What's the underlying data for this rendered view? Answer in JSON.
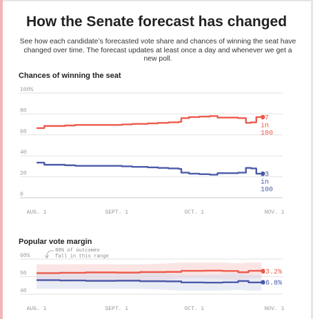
{
  "title": "How the Senate forecast has changed",
  "subtitle": "See how each candidate’s forecasted vote share and chances of winning the seat have changed over time. The forecast updates at least once a day and whenever we get a new poll.",
  "colors": {
    "red": "#ee5a4a",
    "blue": "#4a5aa8",
    "red_band": "#f7d0cd",
    "blue_band": "#d9dcec",
    "grid": "#e2e2e2"
  },
  "chart_data": [
    {
      "type": "line",
      "title": "Chances of winning the seat",
      "ylim": [
        0,
        100
      ],
      "yticks": [
        0,
        20,
        40,
        60,
        80,
        100
      ],
      "ytick_labels": [
        "0",
        "20",
        "40",
        "60",
        "80",
        "100%"
      ],
      "xlim": [
        "2018-08-01",
        "2018-11-01"
      ],
      "xticks": [
        "AUG. 1",
        "SEPT. 1",
        "OCT. 1",
        "NOV. 1"
      ],
      "x": [
        "2018-08-01",
        "2018-08-04",
        "2018-08-08",
        "2018-08-12",
        "2018-08-16",
        "2018-08-20",
        "2018-08-24",
        "2018-08-28",
        "2018-09-01",
        "2018-09-03",
        "2018-09-07",
        "2018-09-11",
        "2018-09-13",
        "2018-09-17",
        "2018-09-21",
        "2018-09-25",
        "2018-09-26",
        "2018-09-29",
        "2018-10-03",
        "2018-10-07",
        "2018-10-10",
        "2018-10-14",
        "2018-10-18",
        "2018-10-21",
        "2018-10-23",
        "2018-10-25",
        "2018-10-27"
      ],
      "series": [
        {
          "color": "red",
          "values": [
            66.5,
            68.5,
            68.5,
            69,
            69.5,
            69.5,
            69.5,
            69.5,
            69.5,
            70,
            70.5,
            70.5,
            71,
            71.5,
            72,
            72.5,
            76,
            77,
            77.5,
            78,
            76.5,
            76.5,
            76,
            71.5,
            72,
            77,
            77
          ]
        },
        {
          "color": "blue",
          "values": [
            33.5,
            31.5,
            31.5,
            31,
            30.5,
            30.5,
            30.5,
            30.5,
            30.5,
            30,
            29.5,
            29.5,
            29,
            28.5,
            28,
            27.5,
            24,
            23,
            22.5,
            22,
            23.5,
            23.5,
            24,
            28.5,
            28,
            23,
            23
          ]
        }
      ],
      "end_labels": [
        {
          "color": "red",
          "value": 77,
          "lines": [
            "77",
            "in",
            "100"
          ]
        },
        {
          "color": "blue",
          "value": 23,
          "lines": [
            "23",
            "in",
            "100"
          ]
        }
      ]
    },
    {
      "type": "line",
      "title": "Popular vote margin",
      "ylim": [
        40,
        60
      ],
      "yticks": [
        40,
        50,
        60
      ],
      "ytick_labels": [
        "40",
        "50",
        "60%"
      ],
      "xlim": [
        "2018-08-01",
        "2018-11-01"
      ],
      "xticks": [
        "AUG. 1",
        "SEPT. 1",
        "OCT. 1",
        "NOV. 1"
      ],
      "annotation": [
        "80% of outcomes",
        "fall in this range"
      ],
      "x": [
        "2018-08-01",
        "2018-08-10",
        "2018-08-20",
        "2018-09-01",
        "2018-09-10",
        "2018-09-20",
        "2018-09-26",
        "2018-10-05",
        "2018-10-12",
        "2018-10-18",
        "2018-10-22",
        "2018-10-27"
      ],
      "series": [
        {
          "color": "red",
          "values": [
            52,
            52.2,
            52.4,
            52.3,
            52.6,
            52.7,
            53.3,
            53.4,
            53.2,
            52.5,
            53.3,
            53.2
          ],
          "band": [
            [
              57,
              47
            ],
            [
              57,
              47
            ],
            [
              57,
              47.4
            ],
            [
              57,
              47.4
            ],
            [
              57,
              47.8
            ],
            [
              57.5,
              48
            ],
            [
              58,
              49
            ],
            [
              58,
              49
            ],
            [
              58,
              48.6
            ],
            [
              57.5,
              48
            ],
            [
              58,
              49
            ],
            [
              58,
              49
            ]
          ]
        },
        {
          "color": "blue",
          "values": [
            48,
            47.8,
            47.6,
            47.7,
            47.4,
            47.3,
            46.7,
            46.6,
            46.8,
            47.5,
            46.7,
            46.8
          ],
          "band": [
            [
              53,
              43
            ],
            [
              53,
              43
            ],
            [
              52.6,
              43
            ],
            [
              52.6,
              43
            ],
            [
              52.2,
              43
            ],
            [
              52,
              42.5
            ],
            [
              51,
              42
            ],
            [
              51,
              42
            ],
            [
              51.4,
              42
            ],
            [
              52,
              42.5
            ],
            [
              51,
              42
            ],
            [
              51,
              42
            ]
          ]
        }
      ],
      "end_labels": [
        {
          "color": "red",
          "value": 53.2,
          "lines": [
            "53.2%"
          ]
        },
        {
          "color": "blue",
          "value": 46.8,
          "lines": [
            "46.8%"
          ]
        }
      ]
    }
  ]
}
